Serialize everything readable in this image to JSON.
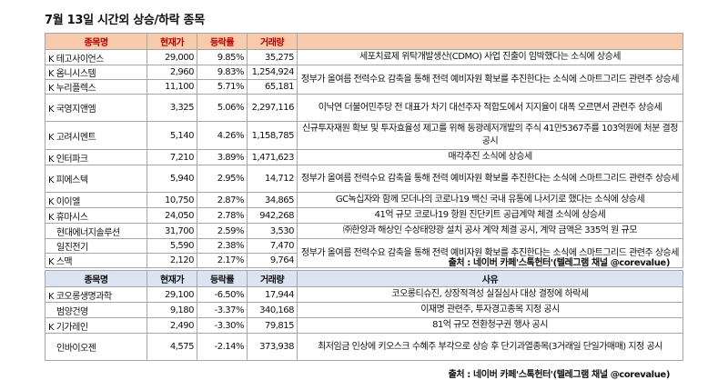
{
  "title": "7월 13일  시간외 상승/하락 종목",
  "rise_table": {
    "headers": [
      "종목명",
      "현재가",
      "등락률",
      "거래량",
      ""
    ],
    "rows": [
      {
        "name": "K 테고사이언스",
        "price": "29,000",
        "change": "9.85%",
        "volume": "35,275",
        "reason": "세포치료제 위탁개발생산(CDMO) 사업 진출이 임박했다는 소식에 상승세"
      },
      {
        "name": "K 옴니시스템",
        "price": "2,960",
        "change": "9.83%",
        "volume": "1,254,924",
        "reason": "정부가 올여름 전력수요 감축을 통해 전력 예비자원 확보를 추진한다는 소식에 스마트그리드 관련주 상승세"
      },
      {
        "name": "K 누리플렉스",
        "price": "11,100",
        "change": "5.71%",
        "volume": "65,181",
        "reason": ""
      },
      {
        "name": "K 국영지앤엠",
        "price": "3,325",
        "change": "5.06%",
        "volume": "2,297,116",
        "reason": "이낙연 더불어민주당 전 대표가 차기 대선주자 적합도에서 지지율이 대폭 오르면서 관련주 상승세"
      },
      {
        "name": "K 고려시멘트",
        "price": "5,140",
        "change": "4.26%",
        "volume": "1,158,785",
        "reason": "신규투자재원 확보 및 투자효율성 제고를 위해 동광레저개발의 주식 41만5367주를 103억원에 처분 결정 공시"
      },
      {
        "name": "K 인터파크",
        "price": "7,210",
        "change": "3.89%",
        "volume": "1,471,623",
        "reason": "매각추진 소식에 상승세"
      },
      {
        "name": "K 피에스텍",
        "price": "5,940",
        "change": "2.95%",
        "volume": "14,712",
        "reason": "정부가 올여름 전력수요 감축을 통해 전력 예비자원 확보를 추진한다는 소식에 스마트그리드 관련주 상승세"
      },
      {
        "name": "K 이이엘",
        "price": "10,750",
        "change": "2.87%",
        "volume": "34,865",
        "reason": "GC녹십자와 함께 모더나의 코로나19 백신 국내 유통에 나서기로 했다는 소식에 상승세"
      },
      {
        "name": "K 휴마시스",
        "price": "24,050",
        "change": "2.78%",
        "volume": "942,268",
        "reason": "41억 규모 코로나19 항원 진단키트 공급계약 체결 소식에 상승세"
      },
      {
        "name": "현대에너지솔루션",
        "price": "31,700",
        "change": "2.59%",
        "volume": "3,530",
        "reason": "㈜한양과 해상인 수상태양광 설치 공사 계약 체결 공시, 계약 금액은 335억 원 규모"
      },
      {
        "name": "일진전기",
        "price": "5,590",
        "change": "2.38%",
        "volume": "7,470",
        "reason": "정부가 올여름 전력수요 감축을 통해 전력 예비자원 확보를 추진한다는 소식에 스마트그리드 관련주 상승세"
      },
      {
        "name": "K 스맥",
        "price": "2,120",
        "change": "2.17%",
        "volume": "9,764",
        "reason": ""
      }
    ]
  },
  "rise_source": "출처 : 네이버 카페'스톡헌터'(텔레그램 채널 @corevalue)",
  "fall_table": {
    "headers": [
      "종목명",
      "현재가",
      "등락률",
      "거래량",
      "사유"
    ],
    "rows": [
      {
        "name": "K 코오롱생명과학",
        "price": "29,100",
        "change": "-6.50%",
        "volume": "17,944",
        "reason": "코오롱티슈진, 상장적격성 실질심사 대상 결정에 하락세"
      },
      {
        "name": "범양건영",
        "price": "9,180",
        "change": "-3.37%",
        "volume": "340,168",
        "reason": "이재명 관련주, 투자경고종목 지정 공시"
      },
      {
        "name": "K 기가레인",
        "price": "2,490",
        "change": "-3.30%",
        "volume": "79,815",
        "reason": "81억 규모 전환청구권 행사 공시"
      },
      {
        "name": "인바이오젠",
        "price": "4,575",
        "change": "-2.14%",
        "volume": "373,938",
        "reason": "최저임금 인상에 키오스크 수혜주 부각으로 상승 후 단기과열종목(3거래일 단일가매매) 지정 공시"
      }
    ]
  },
  "fall_source": "출처 : 네이버 카페'스톡헌터'(텔레그램 채널 @corevalue)"
}
